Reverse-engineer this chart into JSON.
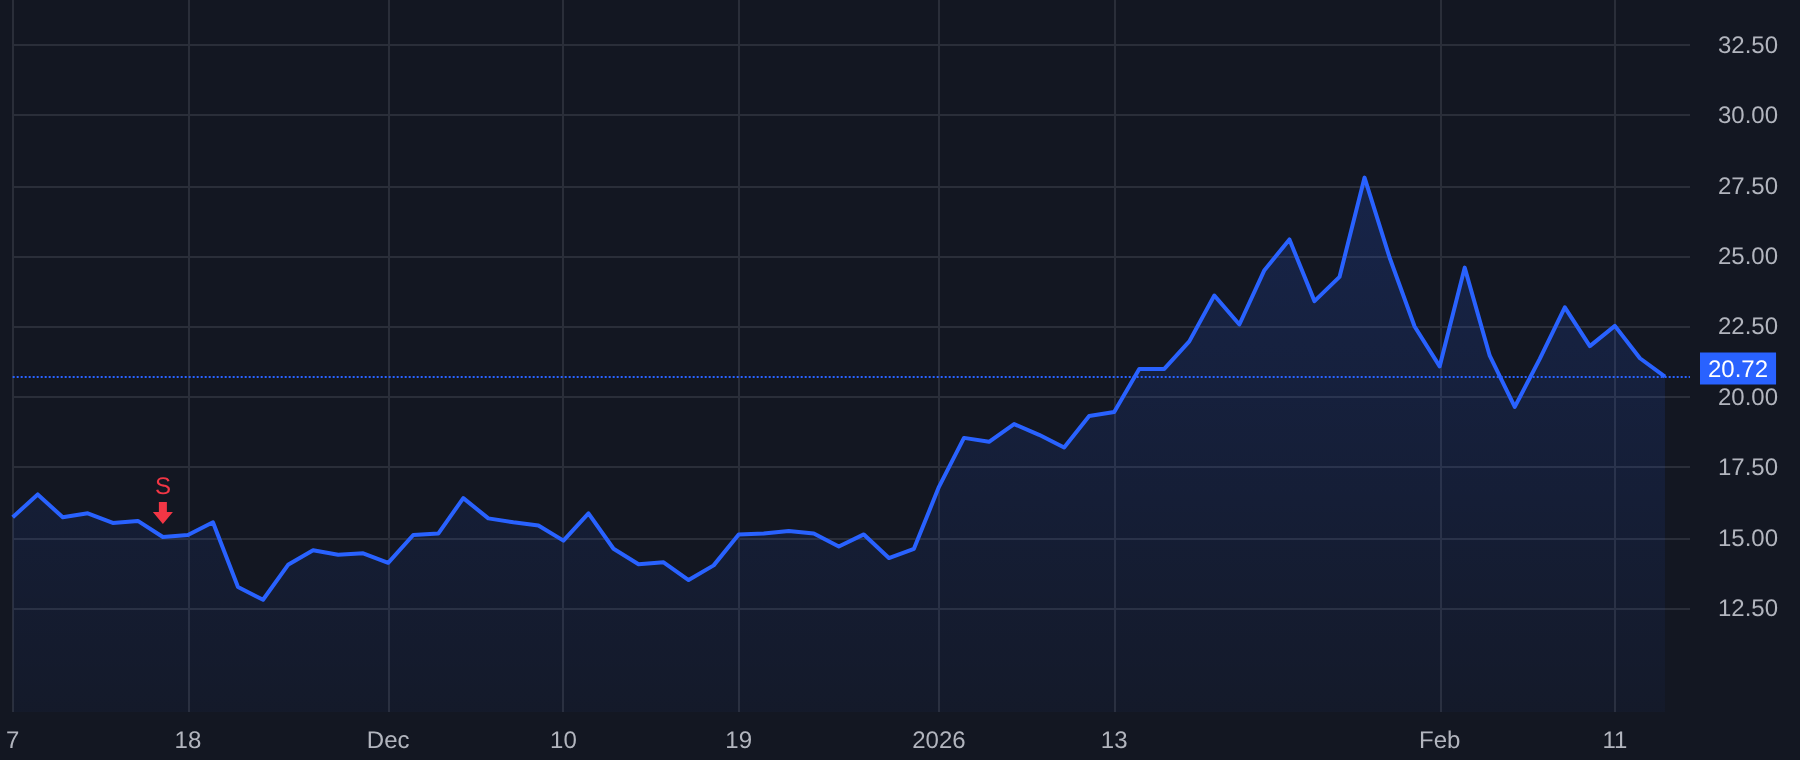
{
  "chart_data": {
    "type": "area",
    "categories": [
      "7",
      null,
      null,
      null,
      null,
      null,
      null,
      "18",
      null,
      null,
      null,
      null,
      null,
      null,
      null,
      "Dec",
      null,
      null,
      null,
      null,
      null,
      null,
      "10",
      null,
      null,
      null,
      null,
      null,
      null,
      "19",
      null,
      null,
      null,
      null,
      null,
      null,
      null,
      "2026",
      null,
      null,
      null,
      null,
      null,
      null,
      "13",
      null,
      null,
      null,
      null,
      null,
      null,
      null,
      null,
      null,
      null,
      null,
      null,
      "Feb",
      null,
      null,
      null,
      null,
      null,
      null,
      "11",
      null,
      null
    ],
    "series": [
      {
        "color": "#2962ff",
        "values": [
          15.72,
          16.53,
          15.72,
          15.86,
          15.52,
          15.59,
          15.02,
          15.09,
          15.54,
          13.24,
          12.79,
          14.03,
          14.55,
          14.39,
          14.44,
          14.1,
          15.09,
          15.14,
          16.4,
          15.68,
          15.54,
          15.43,
          14.89,
          15.86,
          14.6,
          14.05,
          14.12,
          13.49,
          14.01,
          15.11,
          15.14,
          15.23,
          15.14,
          14.68,
          15.11,
          14.27,
          14.6,
          16.8,
          18.54,
          18.4,
          19.03,
          18.65,
          18.2,
          19.32,
          19.46,
          20.99,
          20.99,
          21.97,
          23.6,
          22.57,
          24.5,
          25.59,
          23.4,
          24.26,
          27.79,
          24.95,
          22.5,
          21.08,
          24.59,
          21.46,
          19.64,
          21.35,
          23.18,
          21.8,
          22.52,
          21.37,
          20.72
        ]
      }
    ],
    "ylim": [
      8.8,
      34.1
    ],
    "yticks": [
      {
        "value": 12.5,
        "label": "12.50"
      },
      {
        "value": 15,
        "label": "15.00"
      },
      {
        "value": 17.5,
        "label": "17.50"
      },
      {
        "value": 20,
        "label": "20.00"
      },
      {
        "value": 22.5,
        "label": "22.50"
      },
      {
        "value": 25,
        "label": "25.00"
      },
      {
        "value": 27.5,
        "label": "27.50"
      },
      {
        "value": 30,
        "label": "30.00"
      },
      {
        "value": 32.5,
        "label": "32.50"
      }
    ],
    "ref_lines": [
      {
        "axis": "y",
        "value": 20.72,
        "label": "20.72",
        "color": "#2962ff",
        "line_style": "dotted"
      }
    ],
    "annotations": [
      {
        "text": "S",
        "y": 15.02
      }
    ],
    "grid": true,
    "marker": "none",
    "line_style": "solid"
  }
}
